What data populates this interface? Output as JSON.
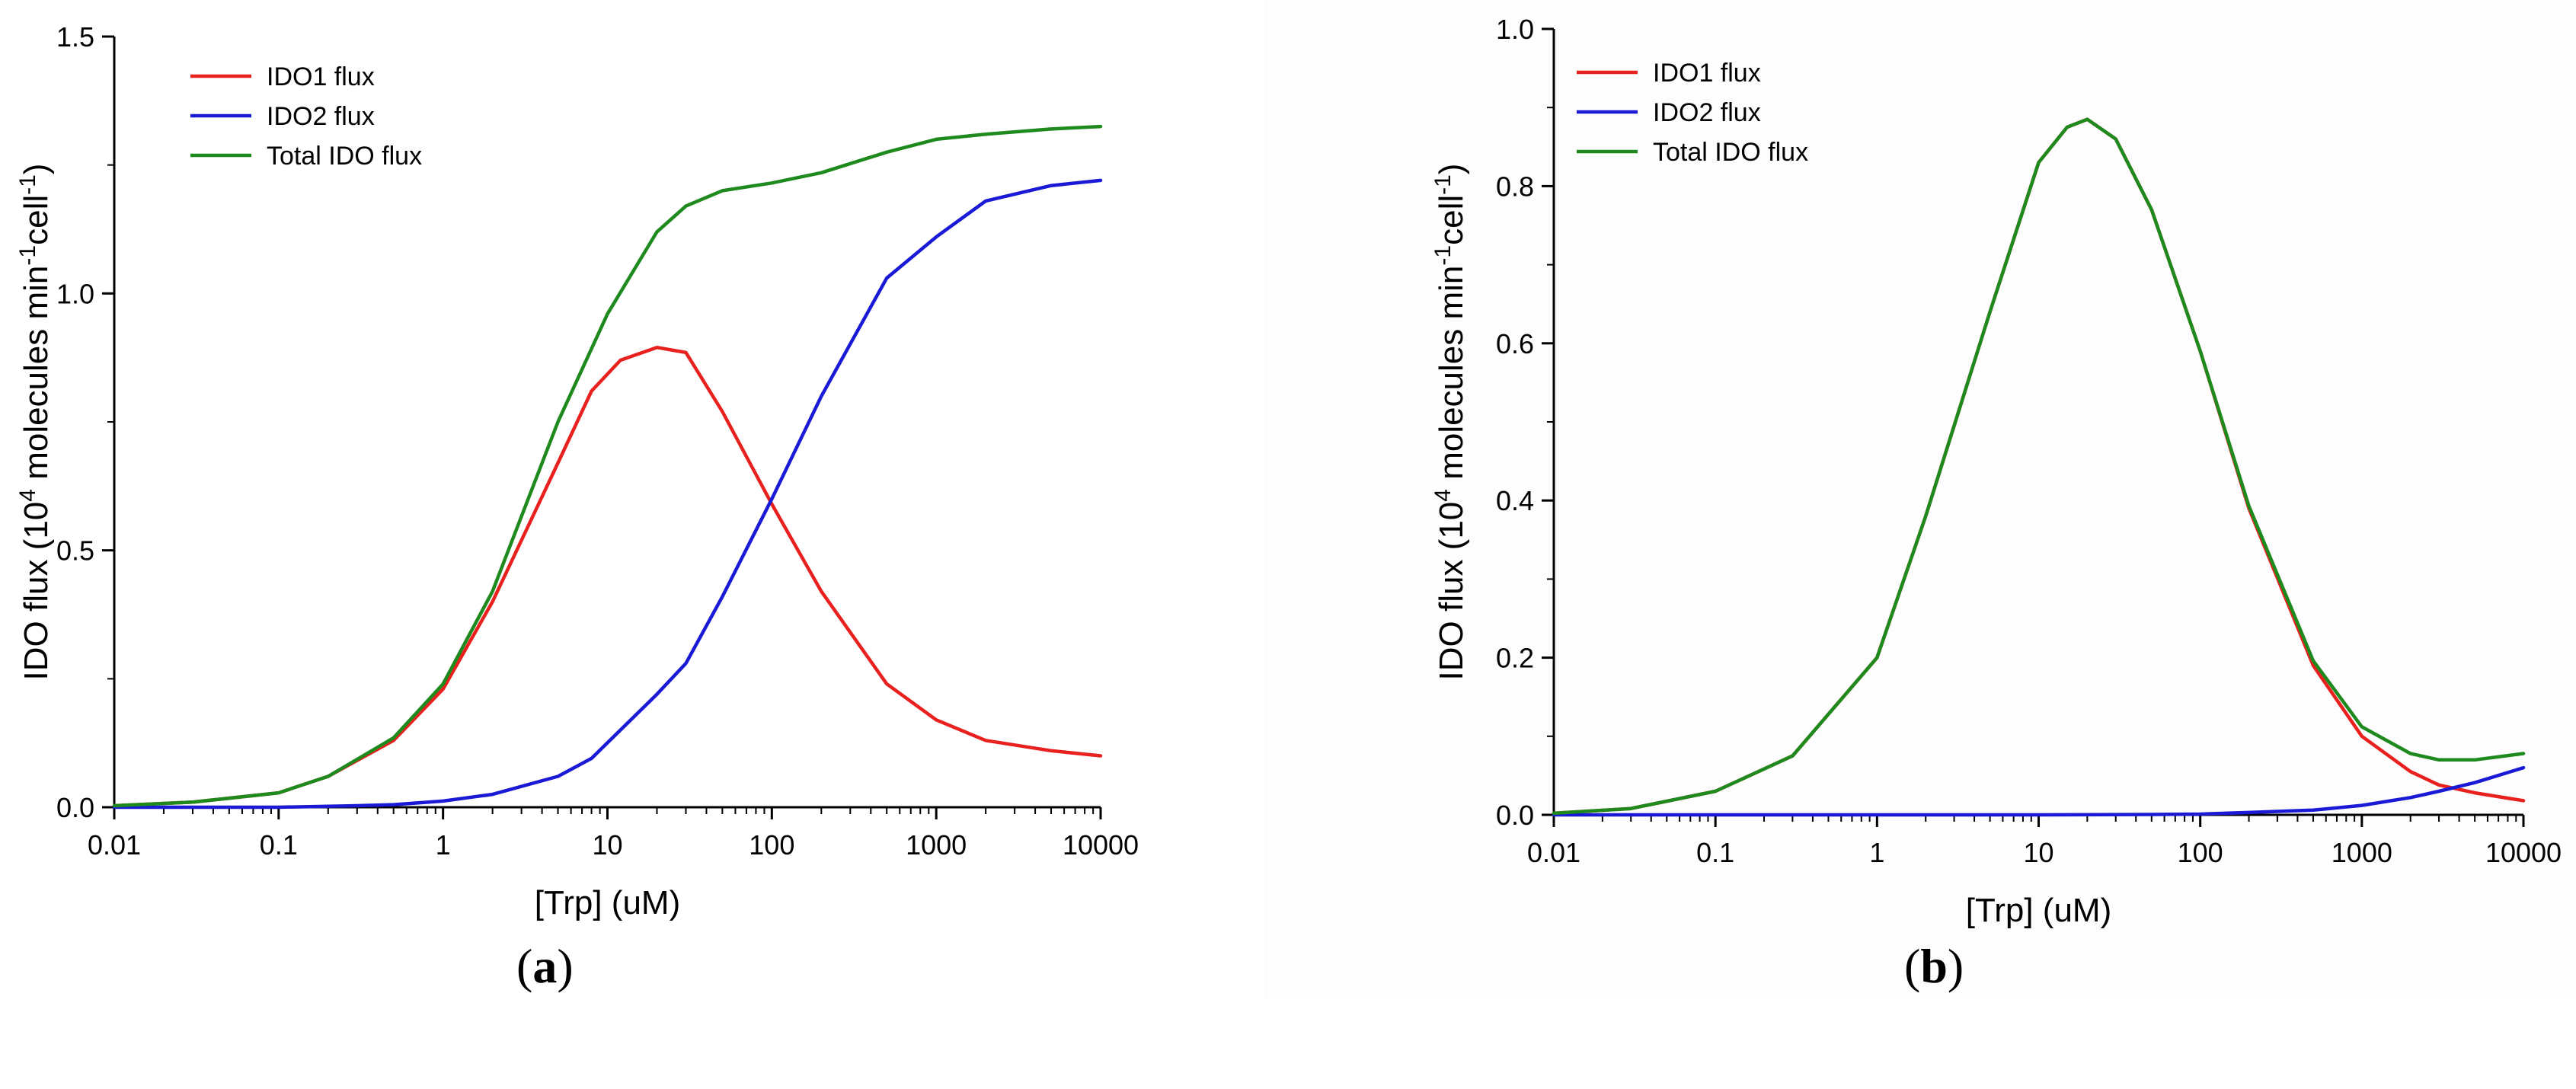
{
  "panels": [
    {
      "label": "a",
      "chart_data": {
        "type": "line",
        "xscale": "log",
        "xlim": [
          0.01,
          10000
        ],
        "ylim": [
          0,
          1.5
        ],
        "xlabel": "[Trp] (uM)",
        "ylabel": {
          "prefix": "IDO flux (10",
          "sup1": "4",
          "mid": " molecules min",
          "sup2": "-1",
          "mid2": "cell",
          "sup3": "-1",
          "suffix": ")"
        },
        "xticks": [
          0.01,
          0.1,
          1,
          10,
          100,
          1000,
          10000
        ],
        "xtick_labels": [
          "0.01",
          "0.1",
          "1",
          "10",
          "100",
          "1000",
          "10000"
        ],
        "yticks": [
          0,
          0.5,
          1.0,
          1.5
        ],
        "ytick_labels": [
          "0.0",
          "0.5",
          "1.0",
          "1.5"
        ],
        "legend_position": "top-left",
        "series": [
          {
            "name": "IDO1 flux",
            "color": "#e8201e",
            "x": [
              0.01,
              0.03,
              0.1,
              0.2,
              0.5,
              1,
              2,
              5,
              8,
              12,
              20,
              30,
              50,
              100,
              200,
              500,
              1000,
              2000,
              5000,
              10000
            ],
            "y": [
              0.003,
              0.01,
              0.028,
              0.06,
              0.13,
              0.23,
              0.4,
              0.67,
              0.81,
              0.87,
              0.895,
              0.885,
              0.77,
              0.59,
              0.42,
              0.24,
              0.17,
              0.13,
              0.11,
              0.1
            ]
          },
          {
            "name": "IDO2 flux",
            "color": "#1a1ad6",
            "x": [
              0.01,
              0.1,
              0.3,
              0.5,
              1,
              2,
              5,
              8,
              20,
              30,
              50,
              100,
              200,
              500,
              1000,
              2000,
              5000,
              10000
            ],
            "y": [
              0,
              0.0,
              0.003,
              0.005,
              0.012,
              0.025,
              0.06,
              0.095,
              0.22,
              0.28,
              0.41,
              0.6,
              0.8,
              1.03,
              1.11,
              1.18,
              1.21,
              1.22
            ]
          },
          {
            "name": "Total IDO flux",
            "color": "#1e8a1e",
            "x": [
              0.01,
              0.03,
              0.1,
              0.2,
              0.5,
              1,
              2,
              5,
              10,
              20,
              30,
              50,
              100,
              200,
              500,
              1000,
              2000,
              5000,
              10000
            ],
            "y": [
              0.003,
              0.01,
              0.028,
              0.06,
              0.135,
              0.24,
              0.42,
              0.75,
              0.96,
              1.12,
              1.17,
              1.2,
              1.215,
              1.235,
              1.275,
              1.3,
              1.31,
              1.32,
              1.325
            ]
          }
        ]
      }
    },
    {
      "label": "b",
      "chart_data": {
        "type": "line",
        "xscale": "log",
        "xlim": [
          0.01,
          10000
        ],
        "ylim": [
          0,
          1.0
        ],
        "xlabel": "[Trp] (uM)",
        "ylabel": {
          "prefix": "IDO flux (10",
          "sup1": "4",
          "mid": " molecules min",
          "sup2": "-1",
          "mid2": "cell",
          "sup3": "-1",
          "suffix": ")"
        },
        "xticks": [
          0.01,
          0.1,
          1,
          10,
          100,
          1000,
          10000
        ],
        "xtick_labels": [
          "0.01",
          "0.1",
          "1",
          "10",
          "100",
          "1000",
          "10000"
        ],
        "yticks": [
          0,
          0.2,
          0.4,
          0.6,
          0.8,
          1.0
        ],
        "ytick_labels": [
          "0.0",
          "0.2",
          "0.4",
          "0.6",
          "0.8",
          "1.0"
        ],
        "legend_position": "top-left",
        "series": [
          {
            "name": "IDO1 flux",
            "color": "#e8201e",
            "x": [
              0.01,
              0.03,
              0.1,
              0.3,
              1,
              2,
              5,
              10,
              15,
              20,
              30,
              50,
              100,
              200,
              500,
              1000,
              2000,
              3000,
              5000,
              10000
            ],
            "y": [
              0.002,
              0.008,
              0.03,
              0.075,
              0.2,
              0.38,
              0.64,
              0.83,
              0.875,
              0.885,
              0.86,
              0.77,
              0.59,
              0.39,
              0.19,
              0.1,
              0.055,
              0.038,
              0.028,
              0.018
            ]
          },
          {
            "name": "IDO2 flux",
            "color": "#1a1ad6",
            "x": [
              0.01,
              1,
              10,
              50,
              100,
              200,
              500,
              1000,
              2000,
              3000,
              5000,
              10000
            ],
            "y": [
              0,
              0,
              0,
              0.0005,
              0.001,
              0.003,
              0.006,
              0.012,
              0.022,
              0.03,
              0.041,
              0.06
            ]
          },
          {
            "name": "Total IDO flux",
            "color": "#1e8a1e",
            "x": [
              0.01,
              0.03,
              0.1,
              0.3,
              1,
              2,
              5,
              10,
              15,
              20,
              30,
              50,
              100,
              200,
              500,
              1000,
              2000,
              3000,
              5000,
              10000
            ],
            "y": [
              0.002,
              0.008,
              0.03,
              0.075,
              0.2,
              0.38,
              0.64,
              0.83,
              0.875,
              0.885,
              0.86,
              0.77,
              0.59,
              0.393,
              0.196,
              0.112,
              0.078,
              0.07,
              0.07,
              0.078
            ]
          }
        ]
      }
    }
  ]
}
